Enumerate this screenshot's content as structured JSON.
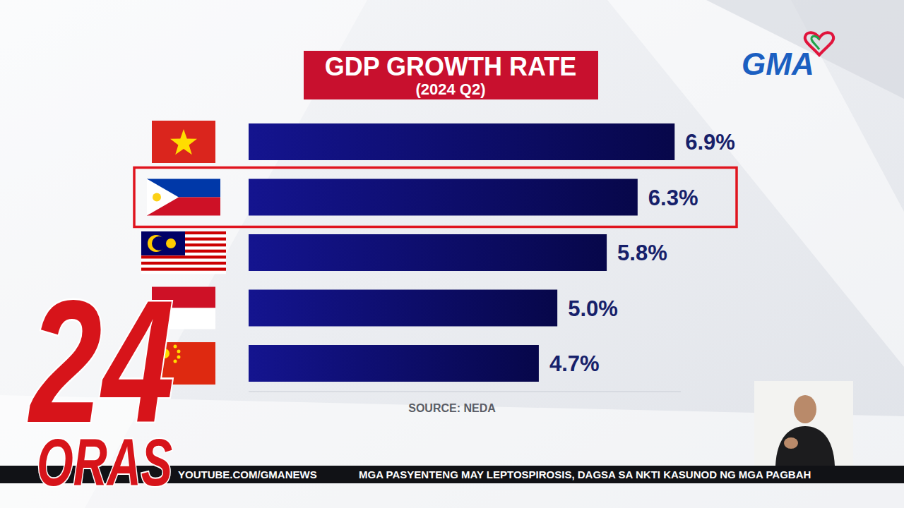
{
  "chart_data": {
    "type": "bar",
    "orientation": "horizontal",
    "title": "GDP GROWTH RATE",
    "subtitle": "(2024 Q2)",
    "source": "SOURCE: NEDA",
    "categories": [
      null,
      null,
      null,
      null,
      null
    ],
    "values": [
      6.9,
      6.3,
      5.8,
      5.0,
      4.7
    ],
    "value_labels": [
      "6.9%",
      "6.3%",
      "5.8%",
      "5.0%",
      "4.7%"
    ],
    "color": "#14148f",
    "xlim": [
      0,
      7
    ],
    "data_labels": true,
    "tick_labels": false,
    "grid": false
  },
  "broadcast": {
    "logo": "GMA",
    "program": [
      "24",
      "ORAS"
    ],
    "ticker": [
      "YOUTUBE.COM/GMANEWS",
      "MGA PASYENTENG MAY LEPTOSPIROSIS, DAGSA SA NKTI KASUNOD NG MGA PAGBAH"
    ]
  }
}
